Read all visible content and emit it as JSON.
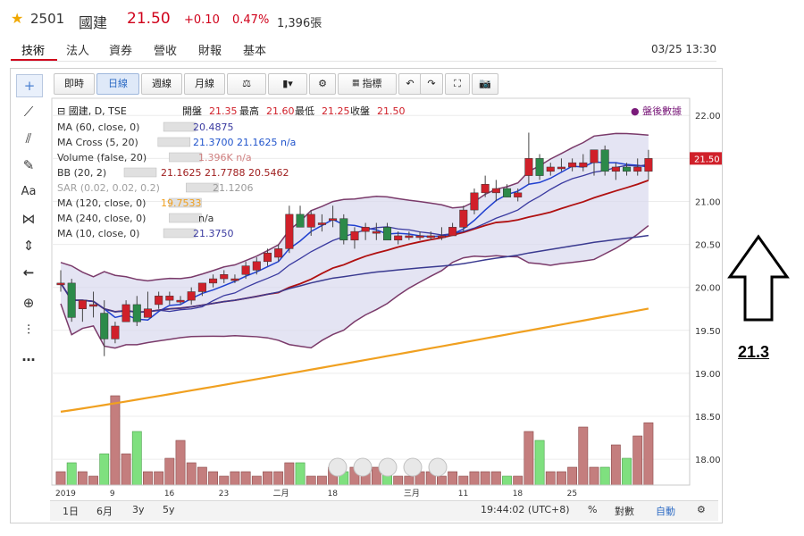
{
  "header": {
    "code": "2501",
    "name": "國建",
    "price": "21.50",
    "change": "+0.10",
    "change_pct": "0.47%",
    "volume": "1,396張"
  },
  "tabs": [
    "技術",
    "法人",
    "資券",
    "營收",
    "財報",
    "基本"
  ],
  "datetime": "03/25 13:30",
  "toolbar": {
    "buttons": [
      "即時",
      "日線",
      "週線",
      "月線",
      "⚖",
      "▮▾",
      "⚙",
      "指標",
      "↶",
      "↷",
      "⛶",
      "📷"
    ],
    "active": "日線"
  },
  "left_tools": [
    "crosshair-icon",
    "line-icon",
    "fib-icon",
    "brush-icon",
    "Aa",
    "pattern-icon",
    "measure-icon",
    "back-arrow-icon",
    "zoom-icon",
    "bars-icon",
    "more-icon"
  ],
  "legend": {
    "title": "國建, D, TSE",
    "ohlc": {
      "open_label": "開盤",
      "open": "21.35",
      "high_label": "最高",
      "high": "21.60",
      "low_label": "最低",
      "low": "21.25",
      "close_label": "收盤",
      "close": "21.50"
    },
    "after_hours": "● 盤後數據",
    "indicators": [
      {
        "label": "MA (60, close, 0)",
        "values": "20.4875",
        "color": "#3a3aa0"
      },
      {
        "label": "MA Cross (5, 20)",
        "values": "21.3700  21.1625  n/a",
        "color": "#2255cc"
      },
      {
        "label": "Volume (false, 20)",
        "values": "1.396K  n/a",
        "color": "#d08080"
      },
      {
        "label": "BB (20, 2)",
        "values": "21.1625  21.7788  20.5462",
        "color": "#a02020"
      },
      {
        "label": "SAR (0.02, 0.02, 0.2)",
        "values": "21.1206",
        "color": "#9a9a9a"
      },
      {
        "label": "MA (120, close, 0)",
        "values": "19.7533",
        "color": "#f0a020"
      },
      {
        "label": "MA (240, close, 0)",
        "values": "n/a",
        "color": "#333333"
      },
      {
        "label": "MA (10, close, 0)",
        "values": "21.3750",
        "color": "#3a3aa0"
      }
    ]
  },
  "chart_data": {
    "type": "candlestick",
    "symbol": "國建, D, TSE",
    "ylim": [
      17.7,
      22.2
    ],
    "y_ticks": [
      18.0,
      18.5,
      19.0,
      19.5,
      20.0,
      20.5,
      21.0,
      21.5,
      22.0
    ],
    "x_tick_labels": [
      "2019",
      "9",
      "16",
      "23",
      "二月",
      "18",
      "三月",
      "11",
      "18",
      "25"
    ],
    "last_price_label": "21.50",
    "candles": [
      {
        "o": 20.05,
        "h": 20.2,
        "l": 19.95,
        "c": 20.05,
        "v": 0.3
      },
      {
        "o": 20.05,
        "h": 20.1,
        "l": 19.6,
        "c": 19.65,
        "v": 0.5
      },
      {
        "o": 19.75,
        "h": 19.85,
        "l": 19.6,
        "c": 19.85,
        "v": 0.3
      },
      {
        "o": 19.8,
        "h": 19.95,
        "l": 19.65,
        "c": 19.8,
        "v": 0.2
      },
      {
        "o": 19.7,
        "h": 19.85,
        "l": 19.2,
        "c": 19.4,
        "v": 0.7
      },
      {
        "o": 19.4,
        "h": 19.6,
        "l": 19.35,
        "c": 19.55,
        "v": 2.0
      },
      {
        "o": 19.6,
        "h": 19.85,
        "l": 19.6,
        "c": 19.8,
        "v": 0.7
      },
      {
        "o": 19.8,
        "h": 19.9,
        "l": 19.55,
        "c": 19.6,
        "v": 1.2
      },
      {
        "o": 19.65,
        "h": 19.95,
        "l": 19.65,
        "c": 19.75,
        "v": 0.3
      },
      {
        "o": 19.8,
        "h": 19.95,
        "l": 19.75,
        "c": 19.9,
        "v": 0.3
      },
      {
        "o": 19.85,
        "h": 19.95,
        "l": 19.8,
        "c": 19.9,
        "v": 0.6
      },
      {
        "o": 19.85,
        "h": 19.9,
        "l": 19.8,
        "c": 19.85,
        "v": 1.0
      },
      {
        "o": 19.85,
        "h": 20.0,
        "l": 19.8,
        "c": 19.95,
        "v": 0.5
      },
      {
        "o": 19.95,
        "h": 20.05,
        "l": 19.9,
        "c": 20.05,
        "v": 0.4
      },
      {
        "o": 20.05,
        "h": 20.15,
        "l": 20.0,
        "c": 20.1,
        "v": 0.3
      },
      {
        "o": 20.1,
        "h": 20.2,
        "l": 20.05,
        "c": 20.15,
        "v": 0.2
      },
      {
        "o": 20.1,
        "h": 20.15,
        "l": 20.05,
        "c": 20.1,
        "v": 0.3
      },
      {
        "o": 20.15,
        "h": 20.3,
        "l": 20.1,
        "c": 20.25,
        "v": 0.3
      },
      {
        "o": 20.2,
        "h": 20.35,
        "l": 20.15,
        "c": 20.3,
        "v": 0.2
      },
      {
        "o": 20.3,
        "h": 20.45,
        "l": 20.25,
        "c": 20.4,
        "v": 0.3
      },
      {
        "o": 20.35,
        "h": 20.5,
        "l": 20.3,
        "c": 20.45,
        "v": 0.3
      },
      {
        "o": 20.45,
        "h": 20.95,
        "l": 20.4,
        "c": 20.85,
        "v": 0.5
      },
      {
        "o": 20.85,
        "h": 20.95,
        "l": 20.7,
        "c": 20.7,
        "v": 0.5
      },
      {
        "o": 20.7,
        "h": 20.9,
        "l": 20.6,
        "c": 20.85,
        "v": 0.2
      },
      {
        "o": 20.75,
        "h": 20.85,
        "l": 20.65,
        "c": 20.75,
        "v": 0.2
      },
      {
        "o": 20.8,
        "h": 20.95,
        "l": 20.7,
        "c": 20.8,
        "v": 0.4
      },
      {
        "o": 20.8,
        "h": 20.85,
        "l": 20.5,
        "c": 20.55,
        "v": 0.3
      },
      {
        "o": 20.55,
        "h": 20.7,
        "l": 20.45,
        "c": 20.65,
        "v": 0.4
      },
      {
        "o": 20.65,
        "h": 20.75,
        "l": 20.55,
        "c": 20.7,
        "v": 0.3
      },
      {
        "o": 20.65,
        "h": 20.75,
        "l": 20.55,
        "c": 20.65,
        "v": 0.4
      },
      {
        "o": 20.7,
        "h": 20.75,
        "l": 20.55,
        "c": 20.55,
        "v": 0.3
      },
      {
        "o": 20.55,
        "h": 20.65,
        "l": 20.5,
        "c": 20.6,
        "v": 0.2
      },
      {
        "o": 20.6,
        "h": 20.65,
        "l": 20.55,
        "c": 20.6,
        "v": 0.2
      },
      {
        "o": 20.6,
        "h": 20.65,
        "l": 20.55,
        "c": 20.6,
        "v": 0.3
      },
      {
        "o": 20.6,
        "h": 20.65,
        "l": 20.55,
        "c": 20.6,
        "v": 0.3
      },
      {
        "o": 20.6,
        "h": 20.7,
        "l": 20.55,
        "c": 20.6,
        "v": 0.2
      },
      {
        "o": 20.6,
        "h": 20.75,
        "l": 20.6,
        "c": 20.7,
        "v": 0.3
      },
      {
        "o": 20.7,
        "h": 20.95,
        "l": 20.65,
        "c": 20.9,
        "v": 0.2
      },
      {
        "o": 20.9,
        "h": 21.15,
        "l": 20.85,
        "c": 21.1,
        "v": 0.3
      },
      {
        "o": 21.1,
        "h": 21.3,
        "l": 21.05,
        "c": 21.2,
        "v": 0.3
      },
      {
        "o": 21.1,
        "h": 21.25,
        "l": 21.0,
        "c": 21.15,
        "v": 0.3
      },
      {
        "o": 21.15,
        "h": 21.2,
        "l": 21.05,
        "c": 21.05,
        "v": 0.2
      },
      {
        "o": 21.05,
        "h": 21.15,
        "l": 21.0,
        "c": 21.1,
        "v": 0.2
      },
      {
        "o": 21.3,
        "h": 21.8,
        "l": 21.2,
        "c": 21.5,
        "v": 1.2
      },
      {
        "o": 21.5,
        "h": 21.55,
        "l": 21.25,
        "c": 21.3,
        "v": 1.0
      },
      {
        "o": 21.35,
        "h": 21.45,
        "l": 21.3,
        "c": 21.4,
        "v": 0.3
      },
      {
        "o": 21.4,
        "h": 21.5,
        "l": 21.35,
        "c": 21.4,
        "v": 0.3
      },
      {
        "o": 21.4,
        "h": 21.5,
        "l": 21.35,
        "c": 21.45,
        "v": 0.4
      },
      {
        "o": 21.4,
        "h": 21.55,
        "l": 21.35,
        "c": 21.45,
        "v": 1.3
      },
      {
        "o": 21.45,
        "h": 21.6,
        "l": 21.3,
        "c": 21.6,
        "v": 0.4
      },
      {
        "o": 21.6,
        "h": 21.65,
        "l": 21.3,
        "c": 21.35,
        "v": 0.4
      },
      {
        "o": 21.35,
        "h": 21.45,
        "l": 21.25,
        "c": 21.4,
        "v": 0.9
      },
      {
        "o": 21.4,
        "h": 21.45,
        "l": 21.3,
        "c": 21.35,
        "v": 0.6
      },
      {
        "o": 21.35,
        "h": 21.5,
        "l": 21.3,
        "c": 21.4,
        "v": 1.1
      },
      {
        "o": 21.35,
        "h": 21.6,
        "l": 21.25,
        "c": 21.5,
        "v": 1.396
      }
    ],
    "vol_ylim": [
      0,
      2.2
    ]
  },
  "bottom": {
    "ranges": [
      "1日",
      "6月",
      "3y",
      "5y"
    ],
    "clock": "19:44:02 (UTC+8)",
    "pct": "%",
    "log": "對數",
    "auto": "自動",
    "gear": "⚙"
  },
  "annotation": {
    "arrow": "up-arrow",
    "text": "21.3"
  },
  "colors": {
    "up": "#d0202a",
    "down": "#2c8a4a",
    "vol_up": "#c47e7e",
    "vol_down": "#7fe07f",
    "bb_fill": "#d8d8ee",
    "ma120": "#f0a020"
  }
}
